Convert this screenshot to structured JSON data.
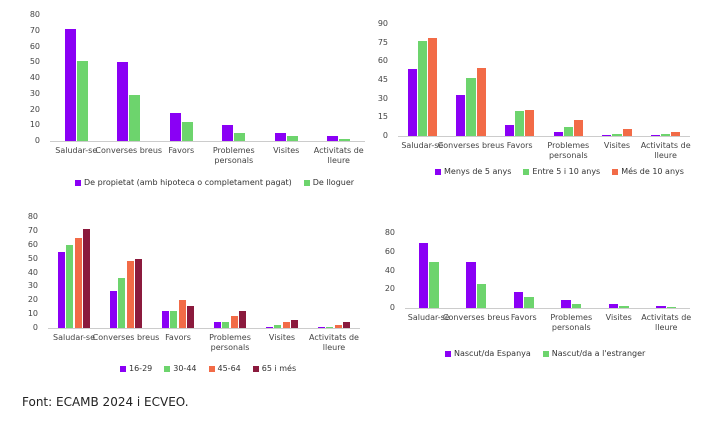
{
  "chart_data": [
    {
      "type": "bar",
      "categories": [
        "Saludar-se",
        "Converses breus",
        "Favors",
        "Problemes personals",
        "Visites",
        "Activitats de lleure"
      ],
      "series": [
        {
          "name": "De propietat (amb hipoteca o completament pagat)",
          "color": "#8a00f5",
          "values": [
            71,
            50,
            18,
            10,
            5,
            3
          ]
        },
        {
          "name": "De lloguer",
          "color": "#6dd46d",
          "values": [
            51,
            29,
            12,
            5,
            3,
            1
          ]
        }
      ],
      "ylim": [
        0,
        80
      ],
      "yticks": [
        0,
        10,
        20,
        30,
        40,
        50,
        60,
        70,
        80
      ],
      "grid": false
    },
    {
      "type": "bar",
      "categories": [
        "Saludar-se",
        "Converses breus",
        "Favors",
        "Problemes personals",
        "Visites",
        "Activitats de lleure"
      ],
      "series": [
        {
          "name": "Menys de 5 anys",
          "color": "#8a00f5",
          "values": [
            54,
            33,
            9,
            3,
            1,
            1
          ]
        },
        {
          "name": "Entre 5 i 10 anys",
          "color": "#6dd46d",
          "values": [
            76,
            47,
            20,
            7,
            2,
            2
          ]
        },
        {
          "name": "Més de 10 anys",
          "color": "#f26b47",
          "values": [
            79,
            55,
            21,
            13,
            6,
            3
          ]
        }
      ],
      "ylim": [
        0,
        90
      ],
      "yticks": [
        0,
        15,
        30,
        45,
        60,
        75,
        90
      ],
      "grid": false
    },
    {
      "type": "bar",
      "categories": [
        "Saludar-se",
        "Converses breus",
        "Favors",
        "Problemes personals",
        "Visites",
        "Activitats de lleure"
      ],
      "series": [
        {
          "name": "16-29",
          "color": "#8a00f5",
          "values": [
            55,
            27,
            12,
            4,
            1,
            1
          ]
        },
        {
          "name": "30-44",
          "color": "#6dd46d",
          "values": [
            60,
            36,
            12,
            4,
            2,
            1
          ]
        },
        {
          "name": "45-64",
          "color": "#f26b47",
          "values": [
            65,
            48,
            20,
            9,
            4,
            2
          ]
        },
        {
          "name": "65 i més",
          "color": "#8b1a3d",
          "values": [
            71,
            50,
            16,
            12,
            6,
            4
          ]
        }
      ],
      "ylim": [
        0,
        80
      ],
      "yticks": [
        0,
        10,
        20,
        30,
        40,
        50,
        60,
        70,
        80
      ],
      "grid": false
    },
    {
      "type": "bar",
      "categories": [
        "Saludar-se",
        "Converses breus",
        "Favors",
        "Problemes personals",
        "Visites",
        "Activitats de lleure"
      ],
      "series": [
        {
          "name": "Nascut/da Espanya",
          "color": "#8a00f5",
          "values": [
            69,
            49,
            17,
            9,
            4,
            2
          ]
        },
        {
          "name": "Nascut/da a l'estranger",
          "color": "#6dd46d",
          "values": [
            49,
            26,
            12,
            4,
            2,
            1
          ]
        }
      ],
      "ylim": [
        0,
        80
      ],
      "yticks": [
        0,
        20,
        40,
        60,
        80
      ],
      "grid": false
    }
  ],
  "source": "Font: ECAMB 2024 i ECVEO."
}
